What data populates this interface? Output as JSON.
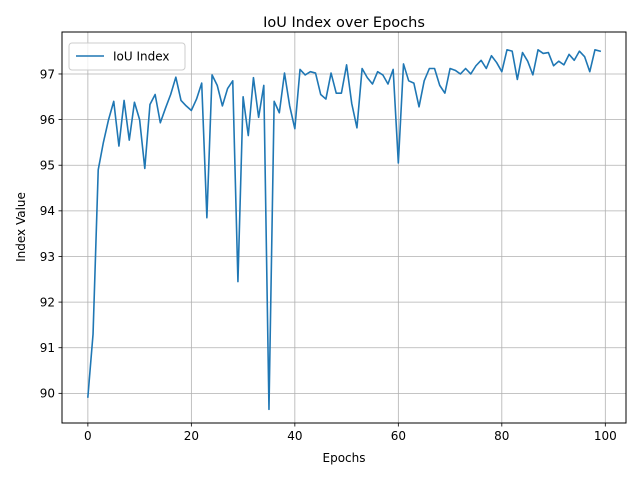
{
  "chart_data": {
    "type": "line",
    "title": "IoU Index over Epochs",
    "xlabel": "Epochs",
    "ylabel": "Index Value",
    "xlim": [
      -5,
      104
    ],
    "ylim": [
      89.35,
      97.92
    ],
    "xticks": [
      0,
      20,
      40,
      60,
      80,
      100
    ],
    "yticks": [
      90,
      91,
      92,
      93,
      94,
      95,
      96,
      97
    ],
    "grid": true,
    "legend_position": "top-left",
    "series": [
      {
        "name": "IoU Index",
        "color": "#1f77b4",
        "x": [
          0,
          1,
          2,
          3,
          4,
          5,
          6,
          7,
          8,
          9,
          10,
          11,
          12,
          13,
          14,
          15,
          16,
          17,
          18,
          19,
          20,
          21,
          22,
          23,
          24,
          25,
          26,
          27,
          28,
          29,
          30,
          31,
          32,
          33,
          34,
          35,
          36,
          37,
          38,
          39,
          40,
          41,
          42,
          43,
          44,
          45,
          46,
          47,
          48,
          49,
          50,
          51,
          52,
          53,
          54,
          55,
          56,
          57,
          58,
          59,
          60,
          61,
          62,
          63,
          64,
          65,
          66,
          67,
          68,
          69,
          70,
          71,
          72,
          73,
          74,
          75,
          76,
          77,
          78,
          79,
          80,
          81,
          82,
          83,
          84,
          85,
          86,
          87,
          88,
          89,
          90,
          91,
          92,
          93,
          94,
          95,
          96,
          97,
          98,
          99
        ],
        "values": [
          89.92,
          91.3,
          94.9,
          95.5,
          96.0,
          96.4,
          95.42,
          96.42,
          95.55,
          96.38,
          96.0,
          94.93,
          96.33,
          96.55,
          95.93,
          96.25,
          96.55,
          96.93,
          96.42,
          96.3,
          96.2,
          96.45,
          96.8,
          93.85,
          96.98,
          96.75,
          96.3,
          96.68,
          96.85,
          92.45,
          96.5,
          95.65,
          96.92,
          96.05,
          96.75,
          89.65,
          96.4,
          96.15,
          97.02,
          96.3,
          95.8,
          97.1,
          96.98,
          97.05,
          97.02,
          96.55,
          96.45,
          97.02,
          96.58,
          96.58,
          97.2,
          96.35,
          95.82,
          97.12,
          96.92,
          96.78,
          97.05,
          96.98,
          96.78,
          97.1,
          95.05,
          97.22,
          96.85,
          96.8,
          96.28,
          96.85,
          97.12,
          97.12,
          96.75,
          96.58,
          97.12,
          97.08,
          97.0,
          97.12,
          97.0,
          97.18,
          97.3,
          97.12,
          97.4,
          97.25,
          97.05,
          97.53,
          97.5,
          96.88,
          97.47,
          97.28,
          96.98,
          97.53,
          97.45,
          97.47,
          97.18,
          97.28,
          97.2,
          97.43,
          97.3,
          97.5,
          97.38,
          97.05,
          97.53,
          97.5
        ]
      }
    ]
  }
}
